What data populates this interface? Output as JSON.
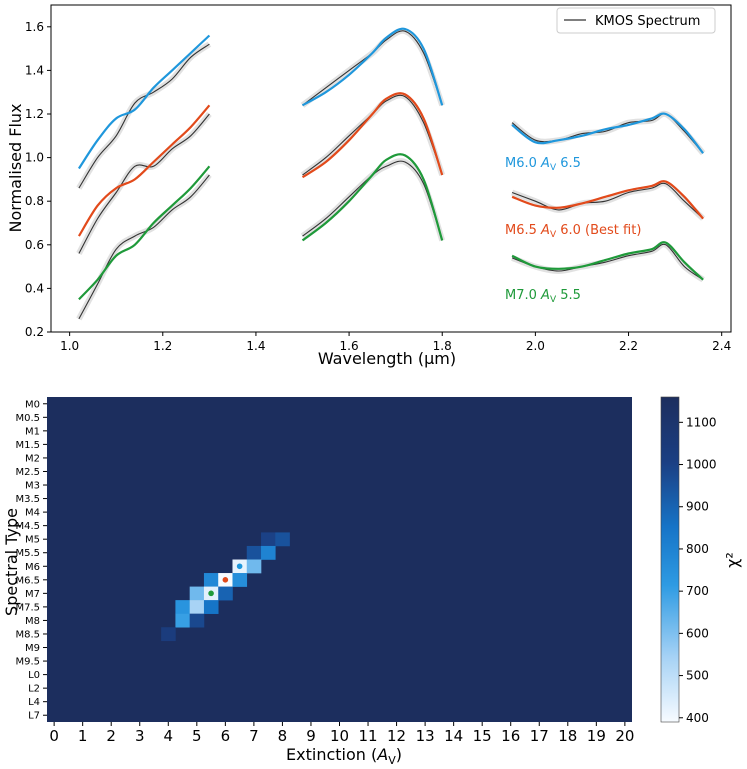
{
  "chart_data": [
    {
      "type": "line",
      "xlabel": "Wavelength (μm)",
      "ylabel": "Normalised Flux",
      "xlim": [
        0.96,
        2.42
      ],
      "ylim": [
        0.2,
        1.7
      ],
      "xticks": [
        1.0,
        1.2,
        1.4,
        1.6,
        1.8,
        2.0,
        2.2,
        2.4
      ],
      "yticks": [
        0.2,
        0.4,
        0.6,
        0.8,
        1.0,
        1.2,
        1.4,
        1.6
      ],
      "legend": {
        "label": "KMOS Spectrum",
        "placement": "top-right"
      },
      "bands": [
        {
          "name": "J",
          "x": [
            1.02,
            1.06,
            1.1,
            1.14,
            1.18,
            1.22,
            1.26,
            1.3
          ]
        },
        {
          "name": "H",
          "x": [
            1.5,
            1.55,
            1.6,
            1.65,
            1.68,
            1.72,
            1.76,
            1.8
          ]
        },
        {
          "name": "K",
          "x": [
            1.95,
            2.0,
            2.05,
            2.1,
            2.15,
            2.2,
            2.25,
            2.28,
            2.32,
            2.36
          ]
        }
      ],
      "series": [
        {
          "name": "M6.0 A_V 6.5",
          "color": "#1f97dc",
          "label_parts": [
            "M6.0 ",
            "A",
            "V",
            " 6.5"
          ],
          "J": [
            0.95,
            1.08,
            1.18,
            1.22,
            1.32,
            1.4,
            1.48,
            1.56
          ],
          "H": [
            1.24,
            1.3,
            1.38,
            1.48,
            1.55,
            1.59,
            1.5,
            1.24
          ],
          "K": [
            1.15,
            1.07,
            1.08,
            1.1,
            1.13,
            1.15,
            1.18,
            1.2,
            1.13,
            1.02
          ]
        },
        {
          "name": "M6.5 A_V 6.0 (Best fit)",
          "color": "#e24a1b",
          "label_parts": [
            "M6.5 ",
            "A",
            "V",
            " 6.0 (Best fit)"
          ],
          "J": [
            0.64,
            0.78,
            0.86,
            0.9,
            0.98,
            1.06,
            1.14,
            1.24
          ],
          "H": [
            0.91,
            0.98,
            1.08,
            1.2,
            1.27,
            1.29,
            1.18,
            0.92
          ],
          "K": [
            0.82,
            0.78,
            0.77,
            0.79,
            0.82,
            0.85,
            0.87,
            0.89,
            0.82,
            0.72
          ]
        },
        {
          "name": "M7.0 A_V 5.5",
          "color": "#1f9a3a",
          "label_parts": [
            "M7.0 ",
            "A",
            "V",
            " 5.5"
          ],
          "J": [
            0.35,
            0.44,
            0.55,
            0.6,
            0.7,
            0.78,
            0.86,
            0.96
          ],
          "H": [
            0.62,
            0.7,
            0.8,
            0.92,
            0.99,
            1.01,
            0.9,
            0.62
          ],
          "K": [
            0.55,
            0.5,
            0.49,
            0.5,
            0.53,
            0.56,
            0.58,
            0.61,
            0.52,
            0.44
          ]
        },
        {
          "name": "KMOS Spectrum",
          "color": "#333333",
          "J": [
            [
              0.86,
              1.0,
              1.1,
              1.25,
              1.3,
              1.36,
              1.46,
              1.52
            ],
            [
              0.56,
              0.72,
              0.84,
              0.96,
              0.96,
              1.04,
              1.1,
              1.2
            ],
            [
              0.26,
              0.42,
              0.58,
              0.64,
              0.68,
              0.76,
              0.82,
              0.92
            ]
          ],
          "H": [
            [
              1.24,
              1.32,
              1.4,
              1.48,
              1.54,
              1.58,
              1.48,
              1.24
            ],
            [
              0.92,
              1.0,
              1.1,
              1.2,
              1.26,
              1.28,
              1.16,
              0.92
            ],
            [
              0.64,
              0.72,
              0.82,
              0.92,
              0.96,
              0.98,
              0.88,
              0.62
            ]
          ],
          "K": [
            [
              1.16,
              1.08,
              1.08,
              1.11,
              1.12,
              1.16,
              1.17,
              1.2,
              1.12,
              1.02
            ],
            [
              0.84,
              0.8,
              0.76,
              0.79,
              0.8,
              0.84,
              0.86,
              0.88,
              0.8,
              0.72
            ],
            [
              0.54,
              0.5,
              0.48,
              0.5,
              0.52,
              0.55,
              0.57,
              0.6,
              0.5,
              0.44
            ]
          ]
        }
      ]
    },
    {
      "type": "heatmap",
      "xlabel": "Extinction (A_V)",
      "xlabel_parts": [
        "Extinction (",
        "A",
        "V",
        ")"
      ],
      "ylabel": "Spectral Type",
      "colorbar_label": "χ²",
      "colorbar_ticks": [
        400,
        500,
        600,
        700,
        800,
        900,
        1000,
        1100
      ],
      "zlim": [
        390,
        1160
      ],
      "x": [
        "0",
        "1",
        "2",
        "3",
        "4",
        "5",
        "6",
        "7",
        "8",
        "9",
        "10",
        "11",
        "12",
        "13",
        "14",
        "15",
        "16",
        "17",
        "18",
        "19",
        "20"
      ],
      "y": [
        "M0",
        "M0.5",
        "M1",
        "M1.5",
        "M2",
        "M2.5",
        "M3",
        "M3.5",
        "M4",
        "M4.5",
        "M5",
        "M5.5",
        "M6",
        "M6.5",
        "M7",
        "M7.5",
        "M8",
        "M8.5",
        "M9",
        "M9.5",
        "L0",
        "L2",
        "L4",
        "L7"
      ],
      "xstep": 0.5,
      "default_value": 1160,
      "cells": [
        {
          "spt": "M5",
          "av": 7.5,
          "value": 1000
        },
        {
          "spt": "M5",
          "av": 8.0,
          "value": 950
        },
        {
          "spt": "M5.5",
          "av": 7.0,
          "value": 950
        },
        {
          "spt": "M5.5",
          "av": 7.5,
          "value": 800
        },
        {
          "spt": "M6",
          "av": 6.5,
          "value": 420
        },
        {
          "spt": "M6",
          "av": 7.0,
          "value": 620
        },
        {
          "spt": "M6.5",
          "av": 5.5,
          "value": 780
        },
        {
          "spt": "M6.5",
          "av": 6.0,
          "value": 390
        },
        {
          "spt": "M6.5",
          "av": 6.5,
          "value": 760
        },
        {
          "spt": "M7",
          "av": 5.0,
          "value": 620
        },
        {
          "spt": "M7",
          "av": 5.5,
          "value": 430
        },
        {
          "spt": "M7",
          "av": 6.0,
          "value": 900
        },
        {
          "spt": "M7.5",
          "av": 4.5,
          "value": 740
        },
        {
          "spt": "M7.5",
          "av": 5.0,
          "value": 540
        },
        {
          "spt": "M7.5",
          "av": 5.5,
          "value": 850
        },
        {
          "spt": "M8",
          "av": 4.5,
          "value": 700
        },
        {
          "spt": "M8",
          "av": 5.0,
          "value": 980
        },
        {
          "spt": "M8.5",
          "av": 4.0,
          "value": 1030
        }
      ],
      "markers": [
        {
          "spt": "M6",
          "av": 6.5,
          "color": "#1f97dc"
        },
        {
          "spt": "M6.5",
          "av": 6.0,
          "color": "#e24a1b"
        },
        {
          "spt": "M7",
          "av": 5.5,
          "color": "#1f9a3a"
        }
      ]
    }
  ]
}
